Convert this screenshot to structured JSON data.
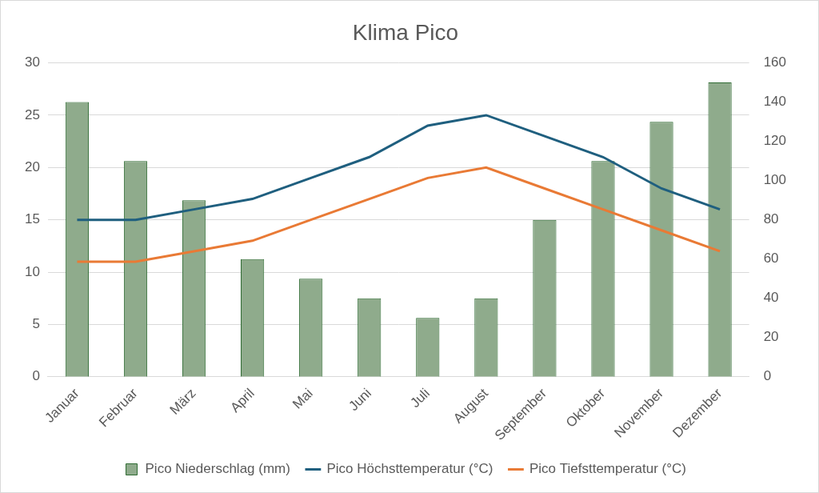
{
  "chart_data": {
    "type": "bar",
    "title": "Klima Pico",
    "categories": [
      "Januar",
      "Februar",
      "März",
      "April",
      "Mai",
      "Juni",
      "Juli",
      "August",
      "September",
      "Oktober",
      "November",
      "Dezember"
    ],
    "series": [
      {
        "name": "Pico Niederschlag (mm)",
        "type": "bar",
        "axis": "y2",
        "color": "#8fab8c",
        "values": [
          140,
          110,
          90,
          60,
          50,
          40,
          30,
          40,
          80,
          110,
          130,
          150
        ]
      },
      {
        "name": "Pico Höchsttemperatur (°C)",
        "type": "line",
        "color": "#1f5f7f",
        "values": [
          15,
          15,
          16,
          17,
          19,
          21,
          24,
          25,
          23,
          21,
          18,
          16
        ]
      },
      {
        "name": "Pico Tiefsttemperatur (°C)",
        "type": "line",
        "color": "#e97a35",
        "values": [
          11,
          11,
          12,
          13,
          15,
          17,
          19,
          20,
          18,
          16,
          14,
          12
        ]
      }
    ],
    "ylim": [
      0,
      30
    ],
    "yticks": [
      0,
      5,
      10,
      15,
      20,
      25,
      30
    ],
    "y2lim": [
      0,
      160
    ],
    "y2ticks": [
      0,
      20,
      40,
      60,
      80,
      100,
      120,
      140,
      160
    ],
    "grid": true,
    "legend": "bottom"
  }
}
